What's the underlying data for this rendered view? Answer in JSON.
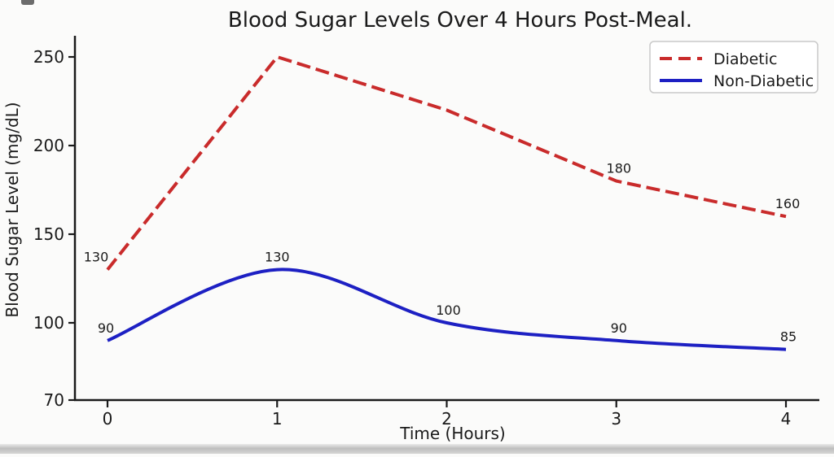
{
  "chart_data": {
    "type": "line",
    "title": "Blood Sugar Levels Over 4 Hours Post-Meal.",
    "xlabel": "Time (Hours)",
    "ylabel": "Blood Sugar Level (mg/dL)",
    "x": [
      0,
      1,
      2,
      3,
      4
    ],
    "xticks": [
      "0",
      "1",
      "2",
      "3",
      "4"
    ],
    "yticks": [
      70,
      100,
      150,
      200,
      250
    ],
    "xlim": [
      -0.2,
      4.2
    ],
    "ylim": [
      70,
      255
    ],
    "grid": false,
    "legend_position": "top-right",
    "text_color": "#1a1a1a",
    "annotation_color": "#222222",
    "axis_color": "#1a1a1a",
    "series": [
      {
        "name": "Diabetic",
        "color": "#c92b2b",
        "style": "dashed",
        "smooth": false,
        "values": [
          130,
          250,
          220,
          180,
          160
        ],
        "annotations": [
          {
            "x": 0,
            "value": 130,
            "label": "130",
            "dx": -14
          },
          {
            "x": 3,
            "value": 180,
            "label": "180",
            "dx": 3
          },
          {
            "x": 4,
            "value": 160,
            "label": "160",
            "dx": 2
          }
        ]
      },
      {
        "name": "Non-Diabetic",
        "color": "#1d20c3",
        "style": "solid",
        "smooth": true,
        "values": [
          90,
          130,
          100,
          90,
          85
        ],
        "annotations": [
          {
            "x": 0,
            "value": 90,
            "label": "90",
            "dx": -2
          },
          {
            "x": 1,
            "value": 130,
            "label": "130",
            "dx": 0
          },
          {
            "x": 2,
            "value": 100,
            "label": "100",
            "dx": 2
          },
          {
            "x": 3,
            "value": 90,
            "label": "90",
            "dx": 3
          },
          {
            "x": 4,
            "value": 85,
            "label": "85",
            "dx": 3
          }
        ]
      }
    ]
  }
}
